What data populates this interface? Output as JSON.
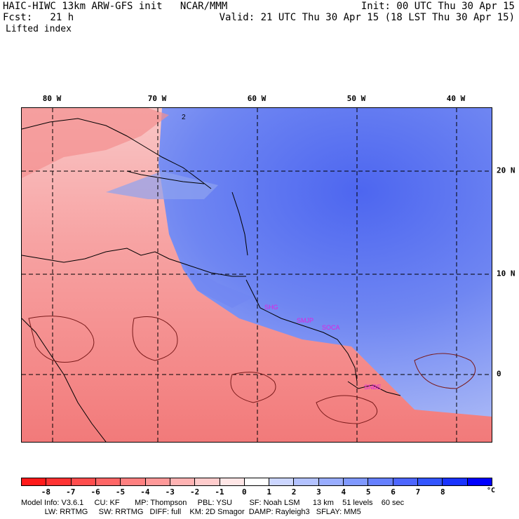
{
  "header": {
    "model": "HAIC-HIWC 13km ARW-GFS init   NCAR/MMM",
    "init": "Init: 00 UTC Thu 30 Apr 15",
    "fcst": "Fcst:   21 h",
    "valid": "Valid: 21 UTC Thu 30 Apr 15 (18 LST Thu 30 Apr 15)",
    "field": "Lifted index"
  },
  "map": {
    "lon_labels": [
      "80 W",
      "70 W",
      "60 W",
      "50 W",
      "40 W"
    ],
    "lat_labels": [
      "20 N",
      "10 N",
      "0"
    ],
    "stations": [
      "SHG",
      "SMJP",
      "SOCA",
      "SNBE"
    ],
    "contour_label": "2"
  },
  "colorbar": {
    "ticks": [
      "-8",
      "-7",
      "-6",
      "-5",
      "-4",
      "-3",
      "-2",
      "-1",
      "0",
      "1",
      "2",
      "3",
      "4",
      "5",
      "6",
      "7",
      "8"
    ],
    "unit": "°C",
    "colors": [
      "#ff1a1a",
      "#ff3333",
      "#ff4d4d",
      "#ff6666",
      "#ff8080",
      "#ff9999",
      "#ffb3b3",
      "#ffcccc",
      "#ffe6e6",
      "#ffffff",
      "#ccd6ff",
      "#b3c2ff",
      "#99adff",
      "#8099ff",
      "#6680ff",
      "#4d66ff",
      "#3355ff",
      "#1a33ff",
      "#0000ff"
    ]
  },
  "model_info": {
    "line1": "Model Info: V3.6.1     CU: KF       MP: Thompson     PBL: YSU        SF: Noah LSM      13 km    51 levels    60 sec",
    "line2": "           LW: RRTMG     SW: RRTMG   DIFF: full    KM: 2D Smagor  DAMP: Rayleigh3   SFLAY: MM5"
  }
}
